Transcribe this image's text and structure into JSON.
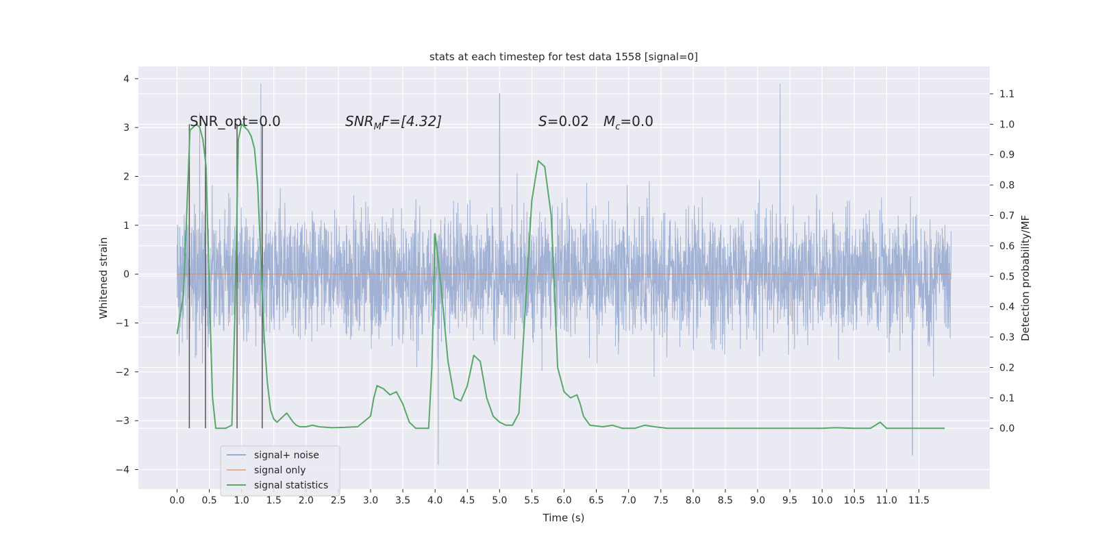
{
  "chart_data": {
    "type": "line",
    "title": "stats at each timestep for test data 1558 [signal=0]",
    "xlabel": "Time (s)",
    "ylabel": "Whitened strain",
    "y2label": "Detection probability/MF",
    "xlim": [
      -0.6,
      12.6
    ],
    "ylim": [
      -4.4,
      4.25
    ],
    "y2lim": [
      -0.2,
      1.19
    ],
    "x_ticks": [
      "0.0",
      "0.5",
      "1.0",
      "1.5",
      "2.0",
      "2.5",
      "3.0",
      "3.5",
      "4.0",
      "4.5",
      "5.0",
      "5.5",
      "6.0",
      "6.5",
      "7.0",
      "7.5",
      "8.0",
      "8.5",
      "9.0",
      "9.5",
      "10.0",
      "10.5",
      "11.0",
      "11.5"
    ],
    "y_ticks": [
      -4,
      -3,
      -2,
      -1,
      0,
      1,
      2,
      3,
      4
    ],
    "y2_ticks": [
      "0.0",
      "0.1",
      "0.2",
      "0.3",
      "0.4",
      "0.5",
      "0.6",
      "0.7",
      "0.8",
      "0.9",
      "1.0",
      "1.1"
    ],
    "grid": true,
    "legend_position": "lower-left",
    "annotations": {
      "snr_opt": "SNR_opt=0.0",
      "snr_mf_base": "SNR",
      "snr_mf_sub": "M",
      "snr_mf_rest": "F=[4.32]",
      "s_var": "S",
      "s_value": "=0.02",
      "mc_var": "M",
      "mc_sub": "c",
      "mc_value": "=0.0"
    },
    "series": [
      {
        "name": "signal+ noise",
        "axis": "left",
        "kind": "noise",
        "x_range": [
          0.0,
          12.0
        ],
        "envelope_typical": [
          -2.1,
          2.3
        ],
        "peaks": [
          [
            0.35,
            3.3
          ],
          [
            1.3,
            3.9
          ],
          [
            5.0,
            3.7
          ],
          [
            9.35,
            3.9
          ],
          [
            4.05,
            -3.9
          ],
          [
            11.4,
            -3.7
          ]
        ]
      },
      {
        "name": "signal only",
        "axis": "left",
        "x": [
          0.0,
          12.0
        ],
        "values": [
          0.0,
          0.0
        ]
      },
      {
        "name": "signal statistics",
        "axis": "right",
        "x": [
          0.0,
          0.1,
          0.2,
          0.25,
          0.3,
          0.35,
          0.4,
          0.45,
          0.5,
          0.55,
          0.6,
          0.65,
          0.7,
          0.75,
          0.85,
          0.9,
          0.95,
          1.0,
          1.05,
          1.1,
          1.15,
          1.2,
          1.25,
          1.3,
          1.35,
          1.4,
          1.45,
          1.5,
          1.55,
          1.6,
          1.7,
          1.8,
          1.85,
          1.9,
          2.0,
          2.1,
          2.2,
          2.4,
          2.6,
          2.8,
          3.0,
          3.05,
          3.1,
          3.2,
          3.3,
          3.4,
          3.5,
          3.6,
          3.7,
          3.8,
          3.9,
          3.95,
          4.0,
          4.05,
          4.1,
          4.2,
          4.3,
          4.4,
          4.5,
          4.6,
          4.7,
          4.8,
          4.9,
          5.0,
          5.1,
          5.2,
          5.3,
          5.4,
          5.5,
          5.6,
          5.7,
          5.8,
          5.85,
          5.9,
          6.0,
          6.1,
          6.2,
          6.25,
          6.3,
          6.4,
          6.6,
          6.75,
          6.9,
          7.0,
          7.1,
          7.25,
          7.4,
          7.6,
          8.0,
          9.0,
          10.0,
          10.2,
          10.5,
          10.6,
          10.75,
          10.9,
          11.0,
          11.5,
          11.9
        ],
        "values": [
          0.31,
          0.44,
          0.98,
          0.99,
          1.0,
          0.99,
          0.95,
          0.86,
          0.45,
          0.1,
          0.0,
          0.0,
          0.0,
          0.0,
          0.01,
          0.4,
          0.95,
          1.0,
          0.99,
          0.98,
          0.96,
          0.92,
          0.8,
          0.55,
          0.3,
          0.15,
          0.06,
          0.03,
          0.02,
          0.03,
          0.05,
          0.02,
          0.01,
          0.005,
          0.005,
          0.01,
          0.005,
          0.002,
          0.003,
          0.005,
          0.04,
          0.1,
          0.14,
          0.13,
          0.11,
          0.12,
          0.08,
          0.02,
          0.0,
          0.0,
          0.0,
          0.2,
          0.64,
          0.55,
          0.45,
          0.22,
          0.1,
          0.09,
          0.14,
          0.24,
          0.22,
          0.1,
          0.04,
          0.02,
          0.01,
          0.01,
          0.05,
          0.4,
          0.75,
          0.88,
          0.86,
          0.7,
          0.45,
          0.2,
          0.12,
          0.1,
          0.11,
          0.08,
          0.04,
          0.01,
          0.005,
          0.01,
          0.0,
          0.0,
          0.0,
          0.01,
          0.005,
          0.0,
          0.0,
          0.0,
          0.0,
          0.002,
          0.0,
          0.0,
          0.0,
          0.02,
          0.0,
          0.0,
          0.0
        ]
      }
    ],
    "vertical_markers": [
      0.19,
      0.44,
      0.93,
      1.32
    ]
  },
  "colors": {
    "background": "#eaeaf2",
    "grid": "#ffffff",
    "noise": "#98abd0",
    "signal_only": "#dd8452",
    "stats": "#55a868",
    "markers": "#555555",
    "text": "#262626"
  }
}
